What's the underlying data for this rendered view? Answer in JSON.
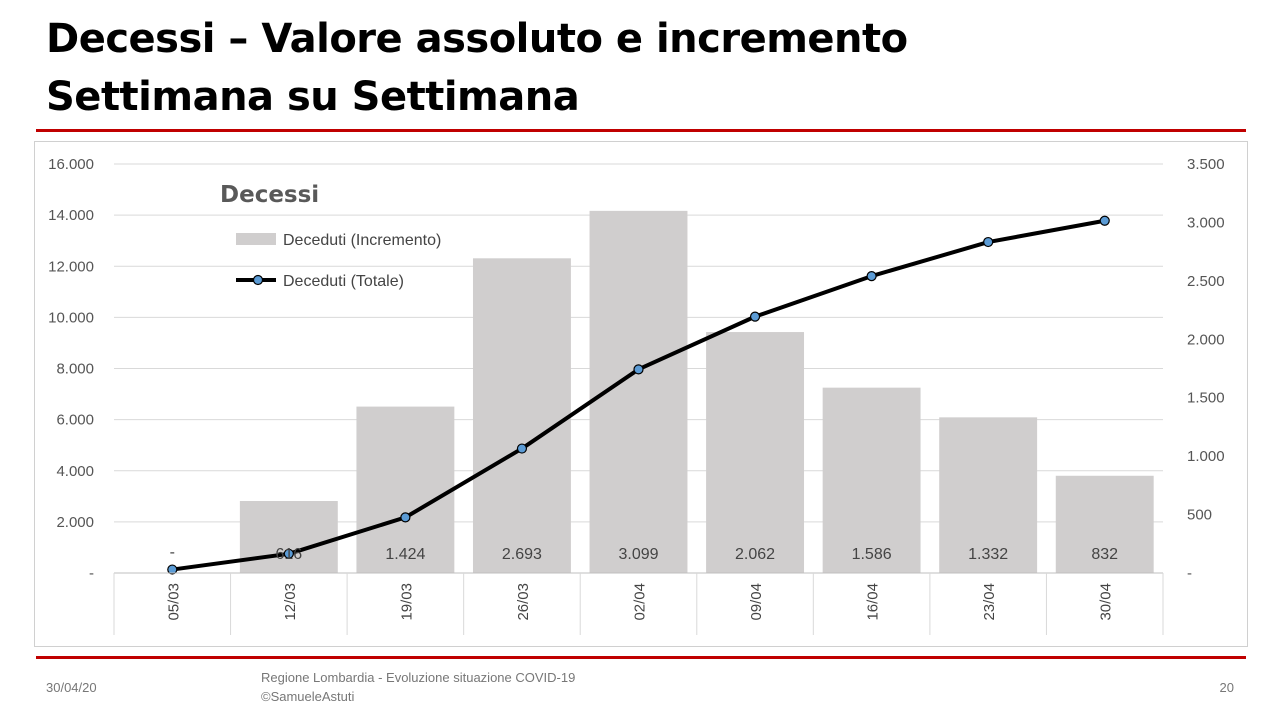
{
  "slide": {
    "title_line1": "Decessi – Valore assoluto e incremento",
    "title_line2": "Settimana su Settimana",
    "rule_color": "#c00000"
  },
  "footer": {
    "date": "30/04/20",
    "source_line1": "Regione Lombardia - Evoluzione situazione COVID-19",
    "source_line2": "©SamueleAstuti",
    "page": "20"
  },
  "chart_data": {
    "type": "bar",
    "title": "Decessi",
    "categories": [
      "05/03",
      "12/03",
      "19/03",
      "26/03",
      "02/04",
      "09/04",
      "16/04",
      "23/04",
      "30/04"
    ],
    "series": [
      {
        "name": "Deceduti (Incremento)",
        "kind": "bar",
        "axis": "right",
        "values": [
          0,
          616,
          1424,
          2693,
          3099,
          2062,
          1586,
          1332,
          832
        ],
        "labels": [
          "-",
          "616",
          "1.424",
          "2.693",
          "3.099",
          "2.062",
          "1.586",
          "1.332",
          "832"
        ],
        "color": "#d0cece"
      },
      {
        "name": "Deceduti (Totale)",
        "kind": "line",
        "axis": "left",
        "values": [
          135,
          751,
          2175,
          4868,
          7967,
          10029,
          11615,
          12947,
          13779
        ],
        "color": "#000000",
        "marker_color": "#5b9bd5"
      }
    ],
    "y_left": {
      "lim": [
        0,
        16000
      ],
      "ticks": [
        "-",
        "2.000",
        "4.000",
        "6.000",
        "8.000",
        "10.000",
        "12.000",
        "14.000",
        "16.000"
      ]
    },
    "y_right": {
      "lim": [
        0,
        3500
      ],
      "ticks": [
        "-",
        "500",
        "1.000",
        "1.500",
        "2.000",
        "2.500",
        "3.000",
        "3.500"
      ]
    },
    "grid": true,
    "legend": "top-left"
  }
}
